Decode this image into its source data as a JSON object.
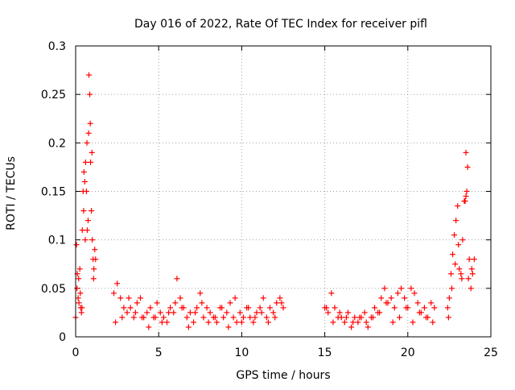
{
  "chart_data": {
    "type": "scatter",
    "title": "Day 016 of 2022, Rate Of TEC Index for receiver pifl",
    "xlabel": "GPS time / hours",
    "ylabel": "ROTI / TECUs",
    "xlim": [
      0,
      25
    ],
    "ylim": [
      0,
      0.3
    ],
    "x_ticks": [
      0,
      5,
      10,
      15,
      20,
      25
    ],
    "x_tick_labels": [
      "0",
      "5",
      "10",
      "15",
      "20",
      "25"
    ],
    "y_ticks": [
      0,
      0.05,
      0.1,
      0.15,
      0.2,
      0.25,
      0.3
    ],
    "y_tick_labels": [
      "0",
      "0.05",
      "0.1",
      "0.15",
      "0.2",
      "0.25",
      "0.3"
    ],
    "grid": true,
    "legend": "none",
    "marker": "+",
    "color": "#ff0000",
    "series": [
      {
        "name": "ROTI",
        "x": [
          0.0,
          0.05,
          0.1,
          0.15,
          0.2,
          0.25,
          0.3,
          0.35,
          0.4,
          0.45,
          0.5,
          0.55,
          0.6,
          0.65,
          0.7,
          0.75,
          0.8,
          0.85,
          0.9,
          0.95,
          1.0,
          1.05,
          1.1,
          1.15,
          1.2,
          0.08,
          0.18,
          0.28,
          0.38,
          0.48,
          0.58,
          0.68,
          0.78,
          0.88,
          0.98,
          1.08,
          2.3,
          2.5,
          2.7,
          2.9,
          3.1,
          3.3,
          3.5,
          3.7,
          3.9,
          4.1,
          4.3,
          4.5,
          4.7,
          4.9,
          5.1,
          5.3,
          5.5,
          5.7,
          5.9,
          6.1,
          6.3,
          6.5,
          6.7,
          6.9,
          7.1,
          7.3,
          7.5,
          7.7,
          7.9,
          8.1,
          8.3,
          8.5,
          8.7,
          8.9,
          9.1,
          9.3,
          9.5,
          9.7,
          9.9,
          10.1,
          10.3,
          10.5,
          10.7,
          10.9,
          11.1,
          11.3,
          11.5,
          11.7,
          11.9,
          12.1,
          12.3,
          12.5,
          2.4,
          2.8,
          3.2,
          3.6,
          4.0,
          4.4,
          4.8,
          5.2,
          5.6,
          6.0,
          6.4,
          6.8,
          7.2,
          7.6,
          8.0,
          8.4,
          8.8,
          9.2,
          9.6,
          10.0,
          10.4,
          10.8,
          11.2,
          11.6,
          12.0,
          12.4,
          15.0,
          15.2,
          15.4,
          15.6,
          15.8,
          16.0,
          16.2,
          16.4,
          16.6,
          16.8,
          17.0,
          17.2,
          17.4,
          17.6,
          17.8,
          18.0,
          18.2,
          18.4,
          18.6,
          18.8,
          19.0,
          19.2,
          19.4,
          19.6,
          19.8,
          20.0,
          20.2,
          20.4,
          20.6,
          20.8,
          21.0,
          21.2,
          21.4,
          21.6,
          15.1,
          15.5,
          15.9,
          16.3,
          16.7,
          17.1,
          17.5,
          17.9,
          18.3,
          18.7,
          19.1,
          19.5,
          19.9,
          20.3,
          20.7,
          21.1,
          21.5,
          22.4,
          22.5,
          22.6,
          22.7,
          22.8,
          22.9,
          23.0,
          23.1,
          23.2,
          23.3,
          23.4,
          23.5,
          23.6,
          23.7,
          23.8,
          23.9,
          24.0,
          22.45,
          22.65,
          22.85,
          23.05,
          23.25,
          23.45,
          23.65,
          23.85,
          23.55,
          23.5
        ],
        "y": [
          0.02,
          0.095,
          0.065,
          0.04,
          0.035,
          0.07,
          0.03,
          0.025,
          0.11,
          0.15,
          0.17,
          0.16,
          0.18,
          0.15,
          0.11,
          0.12,
          0.27,
          0.25,
          0.18,
          0.13,
          0.1,
          0.08,
          0.07,
          0.09,
          0.08,
          0.05,
          0.06,
          0.045,
          0.03,
          0.13,
          0.1,
          0.2,
          0.21,
          0.22,
          0.19,
          0.06,
          0.045,
          0.055,
          0.04,
          0.03,
          0.025,
          0.03,
          0.02,
          0.035,
          0.04,
          0.02,
          0.025,
          0.03,
          0.02,
          0.035,
          0.025,
          0.02,
          0.015,
          0.03,
          0.025,
          0.06,
          0.04,
          0.03,
          0.02,
          0.025,
          0.015,
          0.03,
          0.045,
          0.02,
          0.03,
          0.025,
          0.02,
          0.015,
          0.03,
          0.02,
          0.025,
          0.035,
          0.02,
          0.015,
          0.025,
          0.02,
          0.03,
          0.02,
          0.015,
          0.025,
          0.03,
          0.04,
          0.02,
          0.03,
          0.025,
          0.035,
          0.04,
          0.03,
          0.015,
          0.02,
          0.04,
          0.025,
          0.02,
          0.01,
          0.02,
          0.015,
          0.025,
          0.035,
          0.03,
          0.01,
          0.025,
          0.035,
          0.015,
          0.02,
          0.03,
          0.01,
          0.04,
          0.015,
          0.03,
          0.02,
          0.025,
          0.015,
          0.02,
          0.035,
          0.03,
          0.025,
          0.045,
          0.03,
          0.02,
          0.02,
          0.015,
          0.025,
          0.01,
          0.02,
          0.015,
          0.02,
          0.025,
          0.01,
          0.02,
          0.03,
          0.025,
          0.04,
          0.05,
          0.035,
          0.04,
          0.03,
          0.045,
          0.05,
          0.04,
          0.03,
          0.05,
          0.045,
          0.035,
          0.025,
          0.03,
          0.02,
          0.035,
          0.03,
          0.03,
          0.015,
          0.025,
          0.02,
          0.015,
          0.02,
          0.015,
          0.02,
          0.025,
          0.035,
          0.015,
          0.02,
          0.03,
          0.015,
          0.025,
          0.02,
          0.015,
          0.03,
          0.04,
          0.065,
          0.085,
          0.105,
          0.12,
          0.135,
          0.07,
          0.065,
          0.1,
          0.14,
          0.19,
          0.175,
          0.08,
          0.05,
          0.065,
          0.08,
          0.02,
          0.05,
          0.075,
          0.095,
          0.06,
          0.14,
          0.06,
          0.07,
          0.15,
          0.145
        ]
      }
    ]
  }
}
